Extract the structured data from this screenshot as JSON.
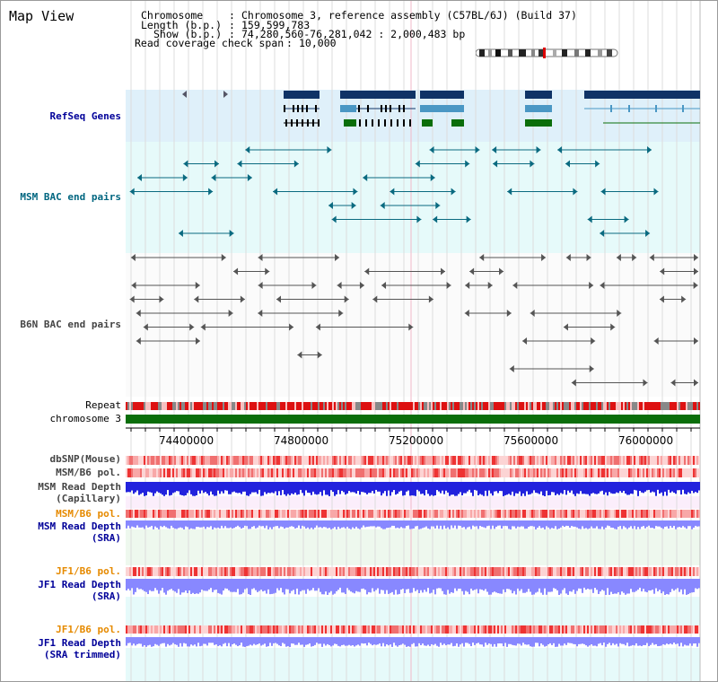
{
  "view": {
    "title": "Map View",
    "chromosome_label": "Chromosome",
    "chromosome_value": "Chromosome 3, reference assembly (C57BL/6J) (Build 37)",
    "length_label": "Length (b.p.)",
    "length_value": "159,599,783",
    "show_label": "Show (b.p.)",
    "show_value": "74,280,560-76,281,042 : 2,000,483 bp",
    "coverage_label": "Read coverage check span",
    "coverage_value": "10,000"
  },
  "tracks": {
    "refseq": "RefSeq Genes",
    "msm_bac": "MSM BAC end pairs",
    "b6n_bac": "B6N BAC end pairs",
    "repeat": "Repeat",
    "chromosome": "chromosome 3",
    "dbsnp": "dbSNP(Mouse)",
    "msm_b6_pol_1": "MSM/B6 pol.",
    "msm_read_depth_cap_1": "MSM Read Depth",
    "msm_read_depth_cap_2": "(Capillary)",
    "msm_b6_pol_2": "MSM/B6 pol.",
    "msm_read_depth_sra_1": "MSM Read Depth",
    "msm_read_depth_sra_2": "(SRA)",
    "jf1_b6_pol_1": "JF1/B6 pol.",
    "jf1_read_depth_sra_1": "JF1 Read Depth",
    "jf1_read_depth_sra_2": "(SRA)",
    "jf1_b6_pol_2": "JF1/B6 pol.",
    "jf1_read_depth_trim_1": "JF1 Read Depth",
    "jf1_read_depth_trim_2": "(SRA trimmed)"
  },
  "axis": {
    "ticks": [
      "74400000",
      "74800000",
      "75200000",
      "75600000",
      "76000000"
    ]
  },
  "colors": {
    "refseq_bg": "#dff0fa",
    "bac_bg": "#e6fafa",
    "gene_dark": "#0f3366",
    "gene_mid": "#4a97c4",
    "gene_green": "#0a6e0a",
    "msm_pair": "#0a6a80",
    "b6n_pair": "#555555",
    "repeat_red": "#dd1111",
    "chromosome_green": "#0a6e0a",
    "pol_red": "#ee2222",
    "depth_blue": "#2222dd",
    "depth_light": "#8888ff",
    "label_navy": "#000099",
    "label_orange": "#e68a00",
    "label_teal": "#006680",
    "label_gray": "#444444"
  }
}
